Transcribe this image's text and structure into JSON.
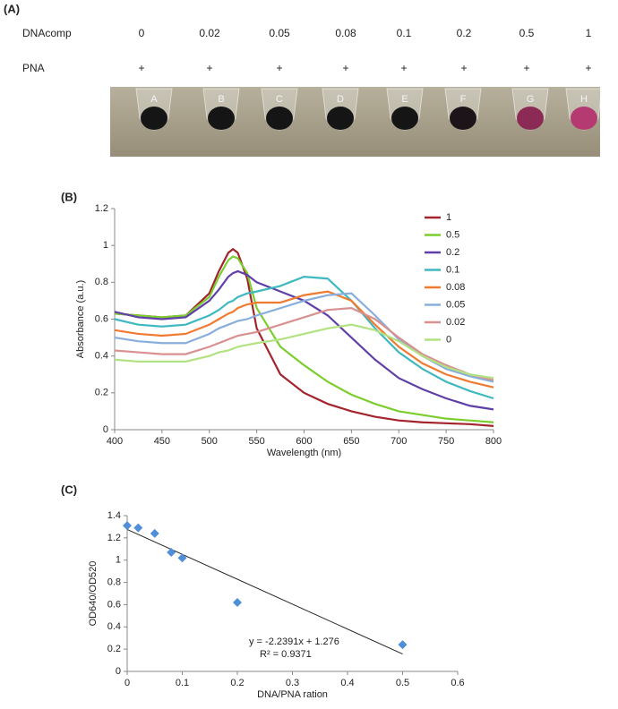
{
  "photo_panel": {
    "panel_label": "(A)",
    "row1_label": "DNAcomp",
    "row1_values": [
      "0",
      "0.02",
      "0.05",
      "0.08",
      "0.1",
      "0.2",
      "0.5",
      "1"
    ],
    "row2_label": "PNA",
    "row2_values": [
      "+",
      "+",
      "+",
      "+",
      "+",
      "+",
      "+",
      "+"
    ],
    "tubes": [
      "A",
      "B",
      "C",
      "D",
      "E",
      "F",
      "G",
      "H"
    ]
  },
  "chart_data": [
    {
      "type": "line",
      "panel_label": "(B)",
      "xlabel": "Wavelength (nm)",
      "ylabel": "Absorbance (a.u.)",
      "x": [
        400,
        425,
        450,
        475,
        500,
        510,
        520,
        525,
        530,
        540,
        550,
        575,
        600,
        625,
        650,
        675,
        700,
        725,
        750,
        775,
        800
      ],
      "xlim": [
        400,
        800
      ],
      "xticks": [
        400,
        450,
        500,
        550,
        600,
        650,
        700,
        750,
        800
      ],
      "ylim": [
        0,
        1.2
      ],
      "yticks": [
        0,
        0.2,
        0.4,
        0.6,
        0.8,
        1,
        1.2
      ],
      "series": [
        {
          "name": "1",
          "color": "#a3242b",
          "values": [
            0.63,
            0.62,
            0.61,
            0.62,
            0.74,
            0.86,
            0.96,
            0.98,
            0.96,
            0.82,
            0.55,
            0.3,
            0.2,
            0.14,
            0.1,
            0.07,
            0.05,
            0.04,
            0.035,
            0.03,
            0.02
          ]
        },
        {
          "name": "0.5",
          "color": "#7ccd30",
          "values": [
            0.63,
            0.62,
            0.61,
            0.62,
            0.72,
            0.83,
            0.92,
            0.94,
            0.93,
            0.85,
            0.66,
            0.45,
            0.35,
            0.26,
            0.19,
            0.14,
            0.1,
            0.08,
            0.06,
            0.05,
            0.04
          ]
        },
        {
          "name": "0.2",
          "color": "#6040a8",
          "values": [
            0.64,
            0.61,
            0.6,
            0.61,
            0.7,
            0.76,
            0.83,
            0.85,
            0.86,
            0.84,
            0.8,
            0.75,
            0.7,
            0.62,
            0.5,
            0.38,
            0.28,
            0.22,
            0.17,
            0.13,
            0.11
          ]
        },
        {
          "name": "0.1",
          "color": "#3fb8c0",
          "values": [
            0.6,
            0.57,
            0.56,
            0.57,
            0.62,
            0.65,
            0.69,
            0.7,
            0.72,
            0.74,
            0.75,
            0.78,
            0.83,
            0.82,
            0.7,
            0.55,
            0.42,
            0.33,
            0.26,
            0.21,
            0.17
          ]
        },
        {
          "name": "0.08",
          "color": "#f07a30",
          "values": [
            0.54,
            0.52,
            0.51,
            0.52,
            0.57,
            0.6,
            0.63,
            0.64,
            0.66,
            0.68,
            0.69,
            0.69,
            0.73,
            0.75,
            0.7,
            0.57,
            0.45,
            0.36,
            0.3,
            0.26,
            0.23
          ]
        },
        {
          "name": "0.05",
          "color": "#8aaedc",
          "values": [
            0.5,
            0.48,
            0.47,
            0.47,
            0.52,
            0.55,
            0.57,
            0.58,
            0.59,
            0.6,
            0.62,
            0.66,
            0.7,
            0.73,
            0.74,
            0.62,
            0.49,
            0.4,
            0.33,
            0.29,
            0.26
          ]
        },
        {
          "name": "0.02",
          "color": "#d99090",
          "values": [
            0.43,
            0.42,
            0.41,
            0.41,
            0.45,
            0.47,
            0.49,
            0.5,
            0.51,
            0.52,
            0.53,
            0.57,
            0.61,
            0.65,
            0.66,
            0.6,
            0.5,
            0.41,
            0.35,
            0.3,
            0.27
          ]
        },
        {
          "name": "0",
          "color": "#b2e282",
          "values": [
            0.38,
            0.37,
            0.37,
            0.37,
            0.4,
            0.42,
            0.43,
            0.44,
            0.45,
            0.46,
            0.47,
            0.49,
            0.52,
            0.55,
            0.57,
            0.54,
            0.48,
            0.4,
            0.34,
            0.3,
            0.28
          ]
        }
      ]
    },
    {
      "type": "scatter",
      "panel_label": "(C)",
      "xlabel": "DNA/PNA ration",
      "ylabel": "OD640/OD520",
      "x": [
        0,
        0.02,
        0.05,
        0.08,
        0.1,
        0.2,
        0.5
      ],
      "values": [
        1.31,
        1.29,
        1.24,
        1.07,
        1.02,
        0.62,
        0.24
      ],
      "color": "#4f8fd8",
      "xlim": [
        0,
        0.6
      ],
      "xticks": [
        0,
        0.1,
        0.2,
        0.3,
        0.4,
        0.5,
        0.6
      ],
      "ylim": [
        0,
        1.4
      ],
      "yticks": [
        0,
        0.2,
        0.4,
        0.6,
        0.8,
        1,
        1.2,
        1.4
      ],
      "trendline": {
        "slope": -2.2391,
        "intercept": 1.276,
        "equation": "y = -2.2391x + 1.276",
        "r2": "R² = 0.9371"
      }
    }
  ]
}
